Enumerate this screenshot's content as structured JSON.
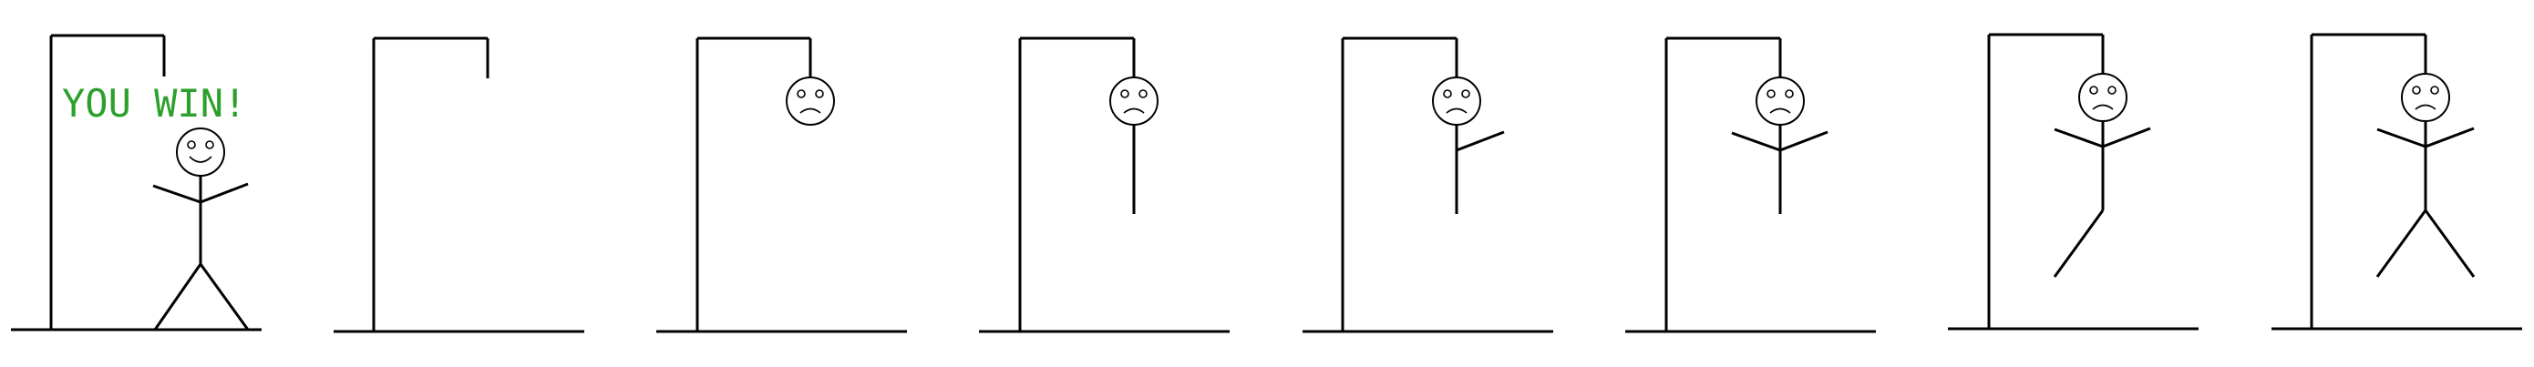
{
  "win_message": "YOU WIN!",
  "colors": {
    "win_text": "#2ca02c",
    "line": "#000000",
    "background": "#ffffff"
  },
  "frames": [
    {
      "id": "win",
      "state": "won",
      "face": "smile"
    },
    {
      "id": "stage-0",
      "state": "empty",
      "parts": 0
    },
    {
      "id": "stage-1",
      "state": "head",
      "parts": 1,
      "face": "frown"
    },
    {
      "id": "stage-2",
      "state": "body",
      "parts": 2,
      "face": "frown"
    },
    {
      "id": "stage-3",
      "state": "one-arm",
      "parts": 3,
      "face": "frown"
    },
    {
      "id": "stage-4",
      "state": "both-arms",
      "parts": 4,
      "face": "frown"
    },
    {
      "id": "stage-5",
      "state": "one-leg",
      "parts": 5,
      "face": "frown"
    },
    {
      "id": "stage-6",
      "state": "both-legs",
      "parts": 6,
      "face": "frown"
    }
  ]
}
